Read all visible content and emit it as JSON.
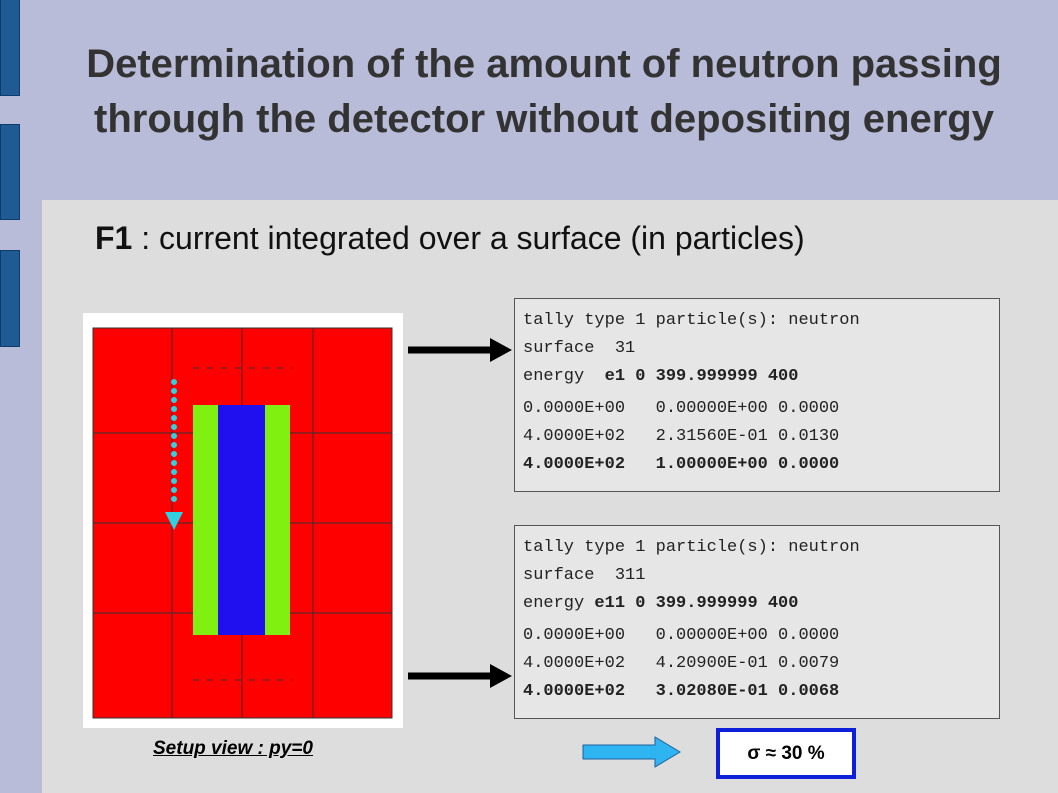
{
  "title": {
    "line1": "Determination of the amount of neutron passing",
    "line2": "through the detector without depositing energy"
  },
  "subtitle": {
    "bold": "F1",
    "text": " : current integrated over a surface (in particles)"
  },
  "tallies": [
    {
      "header": "tally type 1 particle(s): neutron",
      "surface": "surface  31",
      "energy_label": "energy  ",
      "energy_value": "e1 0 399.999999 400",
      "rows": [
        "0.0000E+00   0.00000E+00 0.0000",
        "4.0000E+02   2.31560E-01 0.0130",
        "4.0000E+02   1.00000E+00 0.0000"
      ]
    },
    {
      "header": "tally type 1 particle(s): neutron",
      "surface": "surface  311",
      "energy_label": "energy ",
      "energy_value": "e11 0 399.999999 400",
      "rows": [
        "0.0000E+00   0.00000E+00 0.0000",
        "4.0000E+02   4.20900E-01 0.0079",
        "4.0000E+02   3.02080E-01 0.0068"
      ]
    }
  ],
  "caption": "Setup view : py=0",
  "result": "σ ≈ 30 %"
}
